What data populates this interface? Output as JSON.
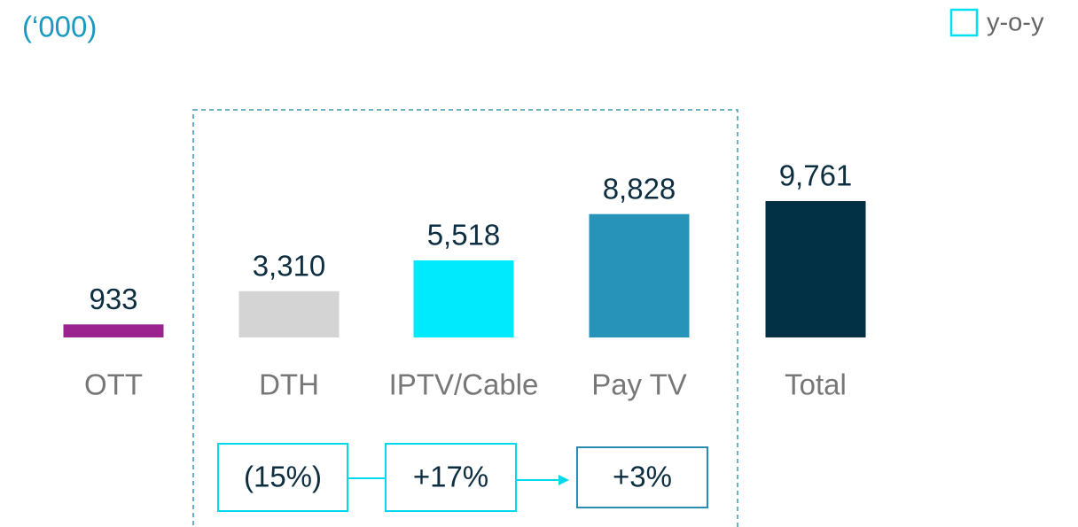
{
  "chart_data": {
    "type": "bar",
    "subtitle": "(‘000)",
    "categories": [
      "OTT",
      "DTH",
      "IPTV/Cable",
      "Pay TV",
      "Total"
    ],
    "values": [
      933,
      3310,
      5518,
      8828,
      9761
    ],
    "value_labels": [
      "933",
      "3,310",
      "5,518",
      "8,828",
      "9,761"
    ],
    "colors": [
      "#9b2390",
      "#d4d4d4",
      "#00eafd",
      "#2893b8",
      "#023045"
    ],
    "legend": "y-o-y",
    "annotations": [
      "(15%)",
      "+17%",
      "+3%"
    ]
  }
}
